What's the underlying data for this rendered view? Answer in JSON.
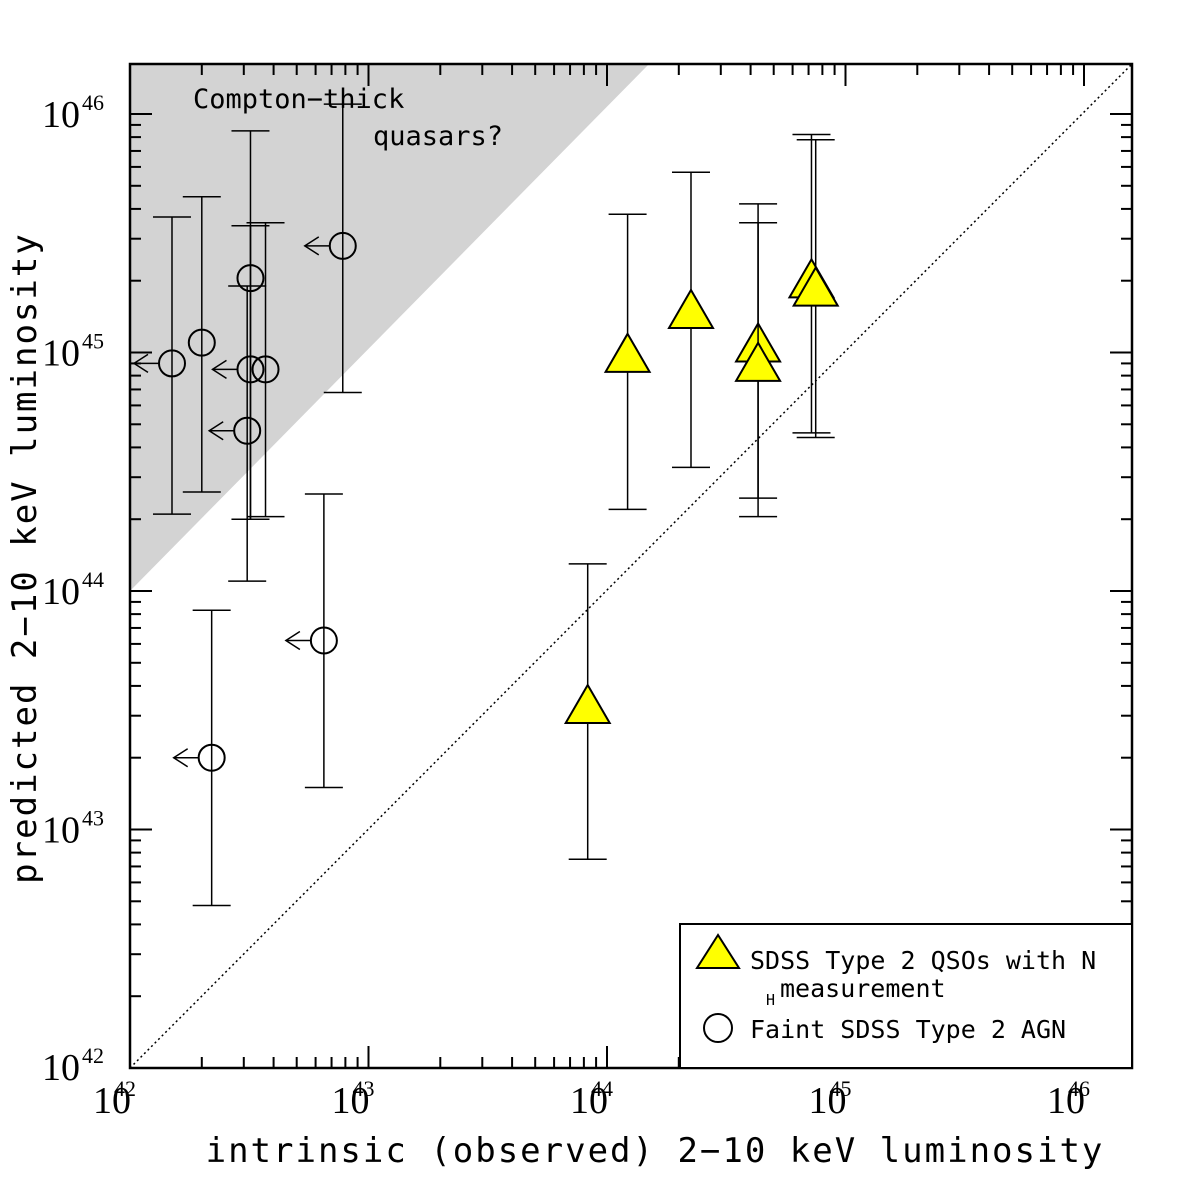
{
  "chart_data": {
    "type": "scatter",
    "xlabel": "intrinsic (observed) 2−10 keV luminosity",
    "ylabel": "predicted 2−10 keV luminosity",
    "xscale": "log",
    "yscale": "log",
    "xlim": [
      1e+42,
      1.5e+46
    ],
    "ylim": [
      1e+42,
      1.5e+46
    ],
    "tick_base": "10",
    "x_ticks": [
      {
        "exp": "42",
        "value": 1e+42
      },
      {
        "exp": "43",
        "value": 1e+43
      },
      {
        "exp": "44",
        "value": 1e+44
      },
      {
        "exp": "45",
        "value": 1e+45
      },
      {
        "exp": "46",
        "value": 1e+46
      }
    ],
    "y_ticks": [
      {
        "exp": "42",
        "value": 1e+42
      },
      {
        "exp": "43",
        "value": 1e+43
      },
      {
        "exp": "44",
        "value": 1e+44
      },
      {
        "exp": "45",
        "value": 1e+45
      },
      {
        "exp": "46",
        "value": 1e+46
      }
    ],
    "grid": false,
    "legend_position": "bottom-right",
    "one_to_one_line": true,
    "shaded_region": {
      "label_line1": "Compton−thick",
      "label_line2": "quasars?",
      "description": "y > 100x",
      "color": "#d3d3d3"
    },
    "series": [
      {
        "name": "SDSS Type 2 QSOs with N",
        "name_subscript": "H",
        "name_line2": "measurement",
        "marker": "triangle",
        "color": "#ffff00",
        "points": [
          {
            "x": 8.3e+43,
            "y": 3.2e+43,
            "ylo": 7.5e+42,
            "yhi": 1.3e+44
          },
          {
            "x": 1.22e+44,
            "y": 9.5e+44,
            "ylo": 2.2e+44,
            "yhi": 3.8e+45
          },
          {
            "x": 2.25e+44,
            "y": 1.45e+45,
            "ylo": 3.3e+44,
            "yhi": 5.7e+45
          },
          {
            "x": 4.3e+44,
            "y": 1.05e+45,
            "ylo": 2.45e+44,
            "yhi": 4.2e+45
          },
          {
            "x": 4.3e+44,
            "y": 8.7e+44,
            "ylo": 2.05e+44,
            "yhi": 3.5e+45
          },
          {
            "x": 7.2e+44,
            "y": 1.95e+45,
            "ylo": 4.6e+44,
            "yhi": 8.2e+45
          },
          {
            "x": 7.5e+44,
            "y": 1.8e+45,
            "ylo": 4.4e+44,
            "yhi": 7.8e+45
          }
        ]
      },
      {
        "name": "Faint SDSS Type 2 AGN",
        "marker": "circle",
        "color": "#ffffff",
        "points": [
          {
            "x": 1.5e+42,
            "y": 9e+44,
            "ylo": 2.1e+44,
            "yhi": 3.7e+45,
            "upper_limit_x": true
          },
          {
            "x": 2e+42,
            "y": 1.1e+45,
            "ylo": 2.6e+44,
            "yhi": 4.5e+45,
            "upper_limit_x": false
          },
          {
            "x": 3.2e+42,
            "y": 2.05e+45,
            "ylo": 2e+44,
            "yhi": 8.5e+45,
            "upper_limit_x": false
          },
          {
            "x": 3.2e+42,
            "y": 8.5e+44,
            "ylo": 2e+44,
            "yhi": 3.4e+45,
            "upper_limit_x": true
          },
          {
            "x": 3.7e+42,
            "y": 8.5e+44,
            "ylo": 2.05e+44,
            "yhi": 3.5e+45,
            "upper_limit_x": false
          },
          {
            "x": 3.1e+42,
            "y": 4.7e+44,
            "ylo": 1.1e+44,
            "yhi": 1.9e+45,
            "upper_limit_x": true
          },
          {
            "x": 7.8e+42,
            "y": 2.8e+45,
            "ylo": 6.8e+44,
            "yhi": 1.1e+46,
            "upper_limit_x": true
          },
          {
            "x": 6.5e+42,
            "y": 6.2e+43,
            "ylo": 1.5e+43,
            "yhi": 2.55e+44,
            "upper_limit_x": true
          },
          {
            "x": 2.2e+42,
            "y": 2e+43,
            "ylo": 4.8e+42,
            "yhi": 8.3e+43,
            "upper_limit_x": true
          }
        ]
      }
    ]
  }
}
